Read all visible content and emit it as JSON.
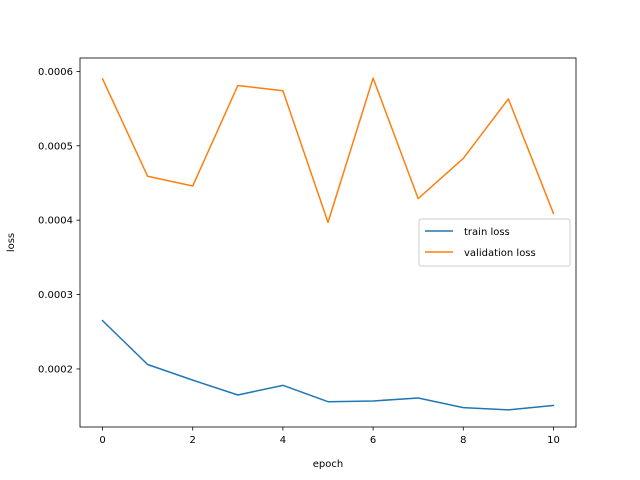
{
  "chart_data": {
    "type": "line",
    "title": "",
    "xlabel": "epoch",
    "ylabel": "loss",
    "xlim": [
      -0.5,
      10.5
    ],
    "ylim": [
      0.000122,
      0.000618
    ],
    "xticks": [
      0,
      2,
      4,
      6,
      8,
      10
    ],
    "xtick_labels": [
      "0",
      "2",
      "4",
      "6",
      "8",
      "10"
    ],
    "yticks": [
      0.0002,
      0.0003,
      0.0004,
      0.0005,
      0.0006
    ],
    "ytick_labels": [
      "0.0002",
      "0.0003",
      "0.0004",
      "0.0005",
      "0.0006"
    ],
    "grid": false,
    "legend_position": "center-right",
    "x": [
      0,
      1,
      2,
      3,
      4,
      5,
      6,
      7,
      8,
      9,
      10
    ],
    "series": [
      {
        "name": "train loss",
        "color": "#1f77b4",
        "values": [
          0.000265,
          0.000206,
          0.000185,
          0.000165,
          0.000178,
          0.000156,
          0.000157,
          0.000161,
          0.000148,
          0.000145,
          0.000151
        ]
      },
      {
        "name": "validation loss",
        "color": "#ff7f0e",
        "values": [
          0.00059,
          0.000459,
          0.000446,
          0.000581,
          0.000574,
          0.000397,
          0.000591,
          0.000429,
          0.000483,
          0.000563,
          0.000409
        ]
      }
    ]
  }
}
